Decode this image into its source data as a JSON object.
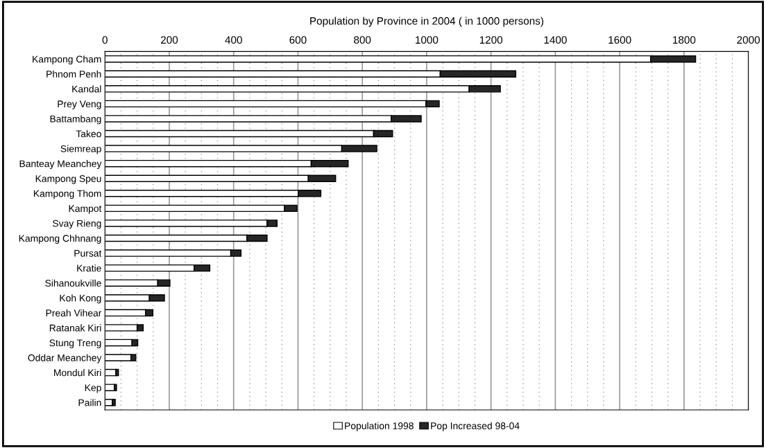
{
  "chart_data": {
    "type": "bar",
    "orientation": "horizontal",
    "stacked": true,
    "title": "Population by Province in 2004 ( in 1000 persons)",
    "categories": [
      "Kampong Cham",
      "Phnom Penh",
      "Kandal",
      "Prey Veng",
      "Battambang",
      "Takeo",
      "Siemreap",
      "Banteay Meanchey",
      "Kampong Speu",
      "Kampong Thom",
      "Kampot",
      "Svay Rieng",
      "Kampong Chhnang",
      "Pursat",
      "Kratie",
      "Sihanoukville",
      "Koh Kong",
      "Preah Vihear",
      "Ratanak Kiri",
      "Stung Treng",
      "Oddar Meanchey",
      "Mondul Kiri",
      "Kep",
      "Pailin"
    ],
    "series": [
      {
        "name": "Population 1998",
        "color": "#ffffff",
        "values": [
          1696,
          1042,
          1132,
          998,
          890,
          835,
          736,
          641,
          632,
          601,
          558,
          504,
          441,
          391,
          277,
          164,
          138,
          126,
          100,
          84,
          81,
          34,
          29,
          23
        ]
      },
      {
        "name": "Pop Increased 98-04",
        "color": "#262626",
        "values": [
          140,
          235,
          97,
          41,
          93,
          59,
          109,
          115,
          85,
          70,
          39,
          31,
          63,
          32,
          49,
          38,
          47,
          23,
          19,
          18,
          15,
          8,
          7,
          9
        ]
      }
    ],
    "xlim": [
      0,
      2000
    ],
    "xticks": [
      0,
      {
        "value": 50,
        "label": null
      },
      {
        "value": 100,
        "label": null
      },
      {
        "value": 150,
        "label": null
      },
      200,
      {
        "value": 250,
        "label": null
      },
      {
        "value": 300,
        "label": null
      },
      {
        "value": 350,
        "label": null
      },
      400,
      {
        "value": 450,
        "label": null
      },
      {
        "value": 500,
        "label": null
      },
      {
        "value": 550,
        "label": null
      },
      600,
      {
        "value": 650,
        "label": null
      },
      {
        "value": 700,
        "label": null
      },
      {
        "value": 750,
        "label": null
      },
      800,
      {
        "value": 850,
        "label": null
      },
      {
        "value": 900,
        "label": null
      },
      {
        "value": 950,
        "label": null
      },
      1000,
      {
        "value": 1050,
        "label": null
      },
      {
        "value": 1100,
        "label": null
      },
      {
        "value": 1150,
        "label": null
      },
      1200,
      {
        "value": 1250,
        "label": null
      },
      {
        "value": 1300,
        "label": null
      },
      {
        "value": 1350,
        "label": null
      },
      1400,
      {
        "value": 1450,
        "label": null
      },
      {
        "value": 1500,
        "label": null
      },
      {
        "value": 1550,
        "label": null
      },
      1600,
      {
        "value": 1650,
        "label": null
      },
      {
        "value": 1700,
        "label": null
      },
      {
        "value": 1750,
        "label": null
      },
      1800,
      {
        "value": 1850,
        "label": null
      },
      {
        "value": 1900,
        "label": null
      },
      {
        "value": 1950,
        "label": null
      },
      2000
    ],
    "grid": "x",
    "legend": "bottom"
  }
}
